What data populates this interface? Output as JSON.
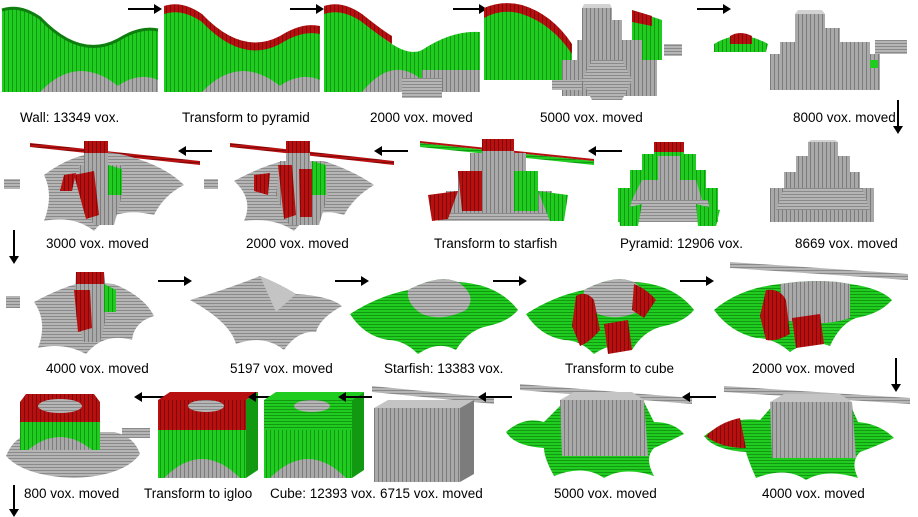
{
  "colors": {
    "green": "#1fcc1f",
    "green_dark": "#119a11",
    "red": "#b81010",
    "red_dark": "#7e0a0a",
    "grey": "#a9a9a9",
    "grey_dark": "#6e6e6e",
    "grey_light": "#d2d2d2",
    "arrow": "#000000"
  },
  "rows": [
    {
      "direction": "right",
      "panels": [
        {
          "caption": "Wall: 13349 vox.",
          "shape": "wall-full"
        },
        {
          "caption": "Transform to pyramid",
          "shape": "wall-red"
        },
        {
          "caption": "2000 vox. moved",
          "shape": "wall-partial"
        },
        {
          "caption": "5000 vox. moved",
          "shape": "wall-pyramid"
        },
        {
          "caption": "8000 vox. moved",
          "shape": "pyramid-growing"
        }
      ]
    },
    {
      "direction": "left",
      "panels": [
        {
          "caption": "3000 vox. moved",
          "shape": "pyr-star-3000"
        },
        {
          "caption": "2000 vox. moved",
          "shape": "pyr-star-2000"
        },
        {
          "caption": "Transform to starfish",
          "shape": "pyr-red"
        },
        {
          "caption": "Pyramid: 12906 vox.",
          "shape": "pyr-green"
        },
        {
          "caption": "8669 vox. moved",
          "shape": "pyr-grey"
        }
      ]
    },
    {
      "direction": "right",
      "panels": [
        {
          "caption": "4000 vox. moved",
          "shape": "star-4000"
        },
        {
          "caption": "5197 vox. moved",
          "shape": "star-grey"
        },
        {
          "caption": "Starfish: 13383 vox.",
          "shape": "star-green"
        },
        {
          "caption": "Transform to cube",
          "shape": "star-red"
        },
        {
          "caption": "2000 vox. moved",
          "shape": "star-cube-2000"
        }
      ]
    },
    {
      "direction": "left",
      "panels": [
        {
          "caption": "800 vox. moved",
          "shape": "igloo-800"
        },
        {
          "caption": "Transform to igloo",
          "shape": "cube-red"
        },
        {
          "caption": "Cube: 12393 vox.",
          "shape": "cube-green"
        },
        {
          "caption": "6715 vox. moved",
          "shape": "cube-grey"
        },
        {
          "caption": "5000 vox. moved",
          "shape": "star-cube-5000"
        },
        {
          "caption": "4000 vox. moved",
          "shape": "star-cube-4000"
        }
      ]
    }
  ]
}
